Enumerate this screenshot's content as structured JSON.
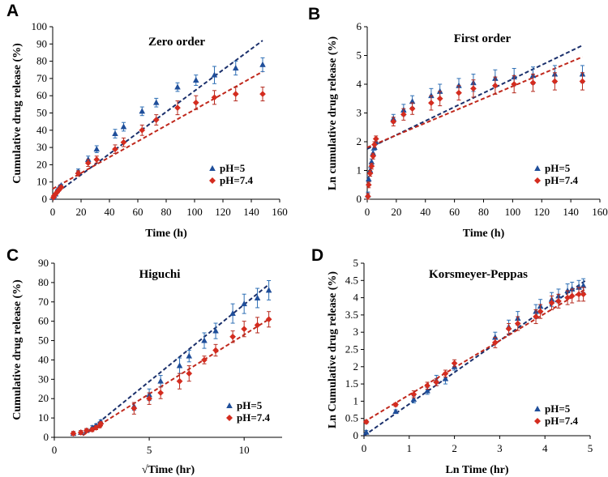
{
  "colors": {
    "blue": "#1f4e9a",
    "red": "#d42c1f",
    "blue_fit": "#1a2f6b",
    "red_fit": "#c0281c",
    "blue_err": "#2e6fb5",
    "red_err": "#b52a1e"
  },
  "chart_data": [
    {
      "type": "scatter",
      "panel_label": "A",
      "title": "Zero order",
      "xlabel": "Time (h)",
      "ylabel": "Cumulative  drug release  (%)",
      "xlim": [
        0,
        160
      ],
      "ylim": [
        0,
        100
      ],
      "xticks": [
        "0",
        "20",
        "40",
        "60",
        "80",
        "100",
        "120",
        "140",
        "160"
      ],
      "yticks": [
        "0",
        "10",
        "20",
        "30",
        "40",
        "50",
        "60",
        "70",
        "80",
        "90",
        "100"
      ],
      "legend_position": "lower-right",
      "series": [
        {
          "name": "pH=5",
          "marker": "triangle",
          "color": "blue",
          "points": [
            [
              0.5,
              1
            ],
            [
              1,
              2
            ],
            [
              2,
              3
            ],
            [
              3,
              5
            ],
            [
              4,
              6
            ],
            [
              5,
              7
            ],
            [
              6,
              8
            ],
            [
              18,
              16
            ],
            [
              25,
              23
            ],
            [
              31,
              29
            ],
            [
              44,
              38
            ],
            [
              50,
              42
            ],
            [
              63,
              51
            ],
            [
              73,
              56
            ],
            [
              88,
              65
            ],
            [
              101,
              69
            ],
            [
              114,
              72
            ],
            [
              129,
              76
            ],
            [
              148,
              78
            ]
          ],
          "errors": [
            0.5,
            0.5,
            0.5,
            0.5,
            0.5,
            0.5,
            0.5,
            1.5,
            2,
            2,
            2.5,
            2.5,
            2.5,
            2.5,
            2.5,
            3,
            5,
            4,
            4
          ],
          "fit": [
            [
              0,
              2
            ],
            [
              148,
              92
            ]
          ]
        },
        {
          "name": "pH=7.4",
          "marker": "diamond",
          "color": "red",
          "points": [
            [
              0.5,
              1
            ],
            [
              1,
              2
            ],
            [
              2,
              3
            ],
            [
              3,
              4
            ],
            [
              4,
              5
            ],
            [
              5,
              6
            ],
            [
              6,
              7
            ],
            [
              18,
              15
            ],
            [
              25,
              21
            ],
            [
              31,
              23
            ],
            [
              44,
              29
            ],
            [
              50,
              33
            ],
            [
              63,
              40
            ],
            [
              73,
              46
            ],
            [
              88,
              53
            ],
            [
              101,
              56
            ],
            [
              114,
              59
            ],
            [
              129,
              61
            ],
            [
              148,
              61
            ]
          ],
          "errors": [
            0.5,
            0.5,
            0.5,
            0.5,
            0.5,
            0.5,
            0.5,
            1.5,
            2,
            2,
            2.5,
            2.5,
            3,
            3,
            4,
            4,
            4,
            4,
            4
          ],
          "fit": [
            [
              0,
              6
            ],
            [
              148,
              74
            ]
          ]
        }
      ]
    },
    {
      "type": "scatter",
      "panel_label": "B",
      "title": "First order",
      "xlabel": "Time (h)",
      "ylabel": "Ln cumulative drug release  (%)",
      "xlim": [
        0,
        160
      ],
      "ylim": [
        0,
        6
      ],
      "xticks": [
        "0",
        "20",
        "40",
        "60",
        "80",
        "100",
        "120",
        "140",
        "160"
      ],
      "yticks": [
        "0",
        "1",
        "2",
        "3",
        "4",
        "5",
        "6"
      ],
      "legend_position": "lower-right",
      "series": [
        {
          "name": "pH=5",
          "marker": "triangle",
          "color": "blue",
          "points": [
            [
              0.5,
              0.15
            ],
            [
              1,
              0.7
            ],
            [
              2,
              1.0
            ],
            [
              3,
              1.3
            ],
            [
              4,
              1.6
            ],
            [
              5,
              1.8
            ],
            [
              6,
              2.0
            ],
            [
              18,
              2.8
            ],
            [
              25,
              3.1
            ],
            [
              31,
              3.4
            ],
            [
              44,
              3.6
            ],
            [
              50,
              3.75
            ],
            [
              63,
              3.95
            ],
            [
              73,
              4.05
            ],
            [
              88,
              4.2
            ],
            [
              101,
              4.25
            ],
            [
              114,
              4.3
            ],
            [
              129,
              4.35
            ],
            [
              148,
              4.35
            ]
          ],
          "errors": [
            0.1,
            0.1,
            0.1,
            0.1,
            0.1,
            0.1,
            0.1,
            0.15,
            0.2,
            0.2,
            0.25,
            0.25,
            0.25,
            0.3,
            0.3,
            0.3,
            0.3,
            0.3,
            0.3
          ],
          "fit": [
            [
              0,
              1.75
            ],
            [
              148,
              5.35
            ]
          ]
        },
        {
          "name": "pH=7.4",
          "marker": "diamond",
          "color": "red",
          "points": [
            [
              0.5,
              0.1
            ],
            [
              1,
              0.5
            ],
            [
              2,
              0.9
            ],
            [
              3,
              1.15
            ],
            [
              4,
              1.5
            ],
            [
              5,
              1.9
            ],
            [
              6,
              2.1
            ],
            [
              18,
              2.7
            ],
            [
              25,
              2.95
            ],
            [
              31,
              3.15
            ],
            [
              44,
              3.35
            ],
            [
              50,
              3.5
            ],
            [
              63,
              3.7
            ],
            [
              73,
              3.85
            ],
            [
              88,
              3.95
            ],
            [
              101,
              4.0
            ],
            [
              114,
              4.05
            ],
            [
              129,
              4.1
            ],
            [
              148,
              4.1
            ]
          ],
          "errors": [
            0.1,
            0.1,
            0.1,
            0.1,
            0.1,
            0.1,
            0.1,
            0.15,
            0.2,
            0.2,
            0.25,
            0.25,
            0.25,
            0.3,
            0.3,
            0.3,
            0.3,
            0.3,
            0.3
          ],
          "fit": [
            [
              0,
              1.8
            ],
            [
              148,
              4.95
            ]
          ]
        }
      ]
    },
    {
      "type": "scatter",
      "panel_label": "C",
      "title": "Higuchi",
      "xlabel": "√Time (hr)",
      "ylabel": "Cumulative drug release (%)",
      "xlim": [
        0,
        12
      ],
      "ylim": [
        0,
        90
      ],
      "xticks": [
        "0",
        "5",
        "10"
      ],
      "xtick_values": [
        0,
        5,
        10
      ],
      "yticks": [
        "0",
        "10",
        "20",
        "30",
        "40",
        "50",
        "60",
        "70",
        "80",
        "90"
      ],
      "legend_position": "lower-right",
      "series": [
        {
          "name": "pH=5",
          "marker": "triangle",
          "color": "blue",
          "points": [
            [
              1.0,
              2
            ],
            [
              1.4,
              2.5
            ],
            [
              1.7,
              3.5
            ],
            [
              2.0,
              5
            ],
            [
              2.2,
              6
            ],
            [
              2.4,
              7
            ],
            [
              2.45,
              8
            ],
            [
              4.2,
              16
            ],
            [
              5.0,
              22
            ],
            [
              5.6,
              29
            ],
            [
              6.6,
              37
            ],
            [
              7.1,
              42
            ],
            [
              7.9,
              50
            ],
            [
              8.5,
              55
            ],
            [
              9.4,
              64
            ],
            [
              10.0,
              69
            ],
            [
              10.7,
              72
            ],
            [
              11.3,
              76
            ]
          ],
          "errors": [
            1,
            1,
            1,
            1,
            1,
            1,
            1,
            2,
            3,
            3,
            4,
            3,
            4,
            4,
            5,
            5,
            5,
            5
          ],
          "fit": [
            [
              1.5,
              1
            ],
            [
              11.3,
              79
            ]
          ]
        },
        {
          "name": "pH=7.4",
          "marker": "diamond",
          "color": "red",
          "points": [
            [
              1.0,
              2
            ],
            [
              1.4,
              2.5
            ],
            [
              1.7,
              3.5
            ],
            [
              2.0,
              4
            ],
            [
              2.2,
              5
            ],
            [
              2.4,
              6
            ],
            [
              2.45,
              7
            ],
            [
              4.2,
              15
            ],
            [
              5.0,
              20
            ],
            [
              5.6,
              23
            ],
            [
              6.6,
              29
            ],
            [
              7.1,
              33
            ],
            [
              7.9,
              40
            ],
            [
              8.5,
              45
            ],
            [
              9.4,
              52
            ],
            [
              10.0,
              56
            ],
            [
              10.7,
              58
            ],
            [
              11.3,
              61
            ]
          ],
          "errors": [
            1,
            1,
            1,
            1,
            1,
            1,
            1,
            3,
            3,
            3,
            4,
            4,
            2,
            3,
            3,
            4,
            4,
            4
          ],
          "fit": [
            [
              1.5,
              1
            ],
            [
              11.3,
              61
            ]
          ]
        }
      ]
    },
    {
      "type": "scatter",
      "panel_label": "D",
      "title": "Korsmeyer-Peppas",
      "xlabel": "Ln Time (hr)",
      "ylabel": "Ln Cumulative drug release (%)",
      "xlim": [
        0,
        5
      ],
      "ylim": [
        0,
        5
      ],
      "xticks": [
        "0",
        "1",
        "2",
        "3",
        "4",
        "5"
      ],
      "yticks": [
        "0",
        "0.5",
        "1",
        "1.5",
        "2",
        "2.5",
        "3",
        "3.5",
        "4",
        "4.5",
        "5"
      ],
      "legend_position": "lower-right",
      "series": [
        {
          "name": "pH=5",
          "marker": "triangle",
          "color": "blue",
          "points": [
            [
              0.05,
              0.1
            ],
            [
              0.7,
              0.7
            ],
            [
              1.1,
              1.05
            ],
            [
              1.4,
              1.3
            ],
            [
              1.6,
              1.6
            ],
            [
              1.8,
              1.65
            ],
            [
              2.0,
              2.0
            ],
            [
              2.9,
              2.85
            ],
            [
              3.2,
              3.15
            ],
            [
              3.4,
              3.4
            ],
            [
              3.8,
              3.6
            ],
            [
              3.9,
              3.75
            ],
            [
              4.15,
              3.95
            ],
            [
              4.3,
              4.05
            ],
            [
              4.5,
              4.2
            ],
            [
              4.6,
              4.25
            ],
            [
              4.75,
              4.3
            ],
            [
              4.85,
              4.35
            ]
          ],
          "errors": [
            0.05,
            0.05,
            0.1,
            0.1,
            0.15,
            0.15,
            0.1,
            0.15,
            0.2,
            0.2,
            0.2,
            0.2,
            0.2,
            0.2,
            0.2,
            0.2,
            0.2,
            0.2
          ],
          "fit": [
            [
              0,
              0.0
            ],
            [
              4.9,
              4.5
            ]
          ]
        },
        {
          "name": "pH=7.4",
          "marker": "diamond",
          "color": "red",
          "points": [
            [
              0.05,
              0.4
            ],
            [
              0.7,
              0.9
            ],
            [
              1.1,
              1.2
            ],
            [
              1.4,
              1.45
            ],
            [
              1.6,
              1.55
            ],
            [
              1.8,
              1.8
            ],
            [
              2.0,
              2.1
            ],
            [
              2.9,
              2.7
            ],
            [
              3.2,
              3.1
            ],
            [
              3.4,
              3.25
            ],
            [
              3.8,
              3.45
            ],
            [
              3.9,
              3.6
            ],
            [
              4.15,
              3.85
            ],
            [
              4.3,
              3.9
            ],
            [
              4.5,
              4.0
            ],
            [
              4.6,
              4.05
            ],
            [
              4.75,
              4.1
            ],
            [
              4.85,
              4.1
            ]
          ],
          "errors": [
            0.05,
            0.05,
            0.1,
            0.1,
            0.1,
            0.1,
            0.1,
            0.15,
            0.15,
            0.2,
            0.2,
            0.2,
            0.2,
            0.2,
            0.2,
            0.2,
            0.2,
            0.2
          ],
          "fit": [
            [
              0,
              0.4
            ],
            [
              4.9,
              4.25
            ]
          ]
        }
      ]
    }
  ]
}
